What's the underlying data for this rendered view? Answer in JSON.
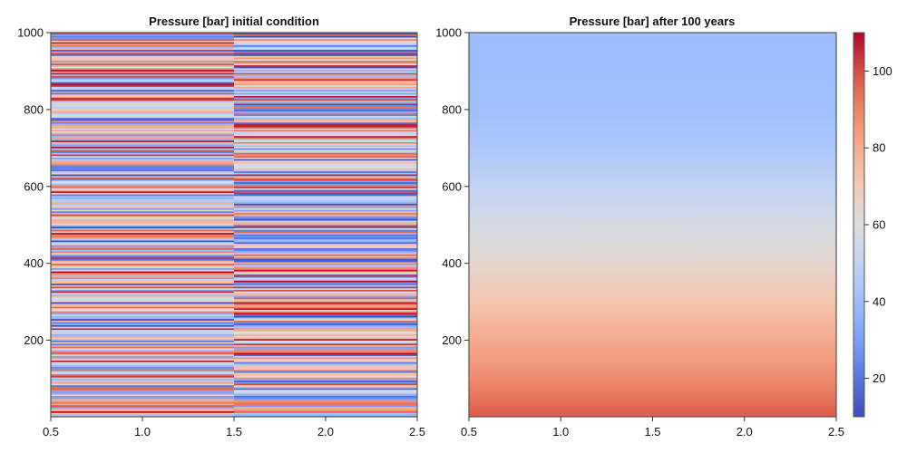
{
  "chart_data": [
    {
      "type": "heatmap",
      "title": "Pressure [bar] initial condition",
      "xlabel": "",
      "ylabel": "",
      "xlim": [
        0.5,
        2.5
      ],
      "ylim": [
        1,
        1000
      ],
      "x_ticks": [
        "0.5",
        "1.0",
        "1.5",
        "2.0",
        "2.5"
      ],
      "y_ticks": [
        "200",
        "400",
        "600",
        "800",
        "1000"
      ],
      "columns": [
        1,
        2
      ],
      "rows": 1000,
      "description_of_values": "random per-row pressures between ~10 and ~110 bar in each of 2 columns",
      "value_range": [
        10,
        110
      ],
      "colormap": "coolwarm"
    },
    {
      "type": "heatmap",
      "title": "Pressure [bar] after 100 years",
      "xlabel": "",
      "ylabel": "",
      "xlim": [
        0.5,
        2.5
      ],
      "ylim": [
        1,
        1000
      ],
      "x_ticks": [
        "0.5",
        "1.0",
        "1.5",
        "2.0",
        "2.5"
      ],
      "y_ticks": [
        "200",
        "400",
        "600",
        "800",
        "1000"
      ],
      "columns": [
        1,
        2
      ],
      "rows": 1000,
      "profile": [
        {
          "y": 1,
          "value": 98
        },
        {
          "y": 100,
          "value": 88
        },
        {
          "y": 200,
          "value": 80
        },
        {
          "y": 300,
          "value": 72
        },
        {
          "y": 400,
          "value": 64
        },
        {
          "y": 500,
          "value": 57
        },
        {
          "y": 600,
          "value": 50
        },
        {
          "y": 700,
          "value": 44
        },
        {
          "y": 800,
          "value": 41
        },
        {
          "y": 900,
          "value": 40
        },
        {
          "y": 1000,
          "value": 40
        }
      ],
      "colormap": "coolwarm"
    }
  ],
  "colorbar": {
    "range": [
      10,
      110
    ],
    "ticks": [
      "20",
      "40",
      "60",
      "80",
      "100"
    ],
    "colormap": "coolwarm"
  }
}
